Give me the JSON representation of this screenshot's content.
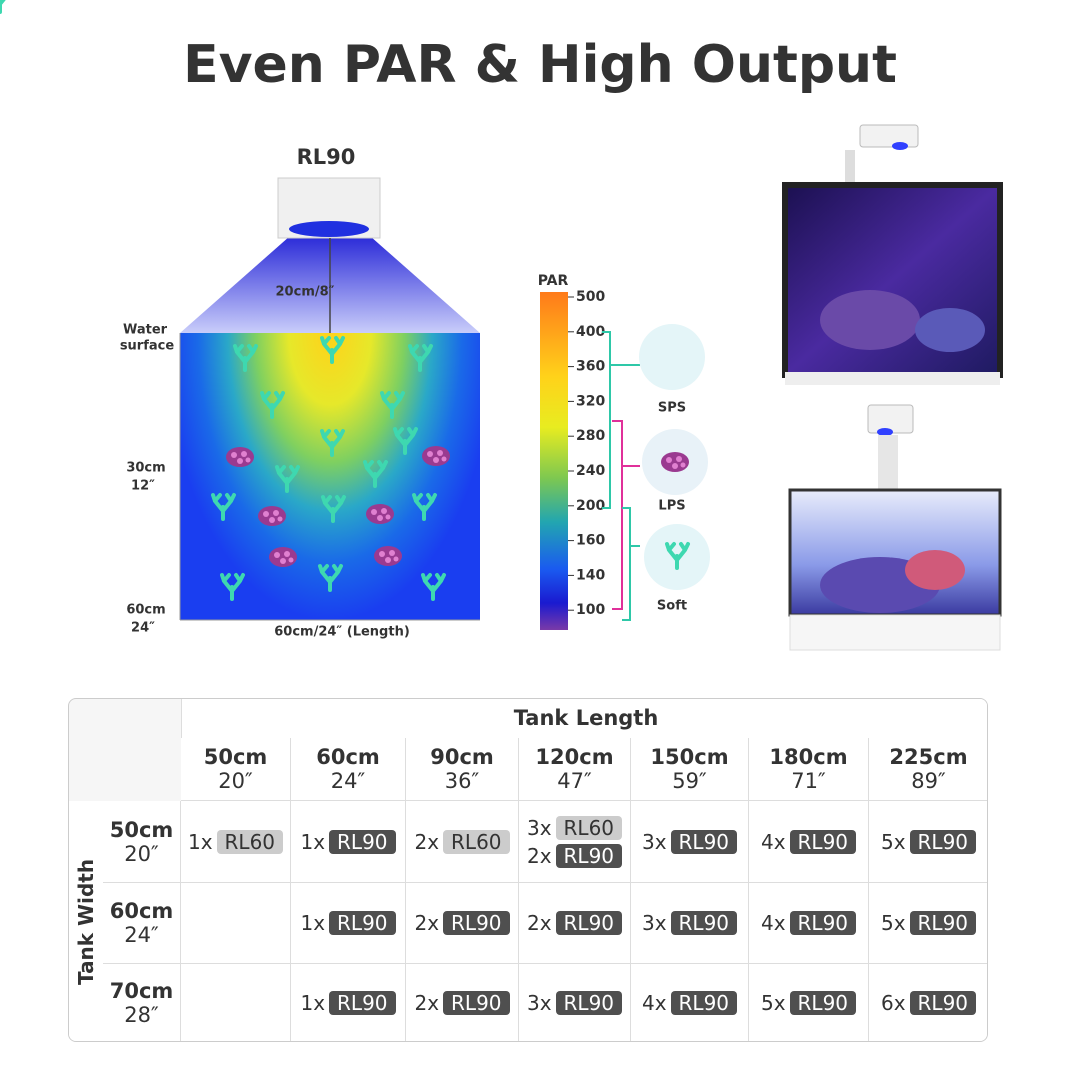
{
  "title": "Even PAR & High Output",
  "diagram": {
    "light": "RL90",
    "distance": "20cm/8″",
    "water_surface": [
      "Water",
      "surface"
    ],
    "depth_marks": [
      {
        "cm": "30cm",
        "in": "12″"
      },
      {
        "cm": "60cm",
        "in": "24″"
      }
    ],
    "length": "60cm/24″  (Length)"
  },
  "par_scale": {
    "label": "PAR",
    "ticks": [
      "500",
      "400",
      "360",
      "320",
      "280",
      "240",
      "200",
      "160",
      "140",
      "100"
    ]
  },
  "corals": [
    "SPS",
    "LPS",
    "Soft"
  ],
  "table": {
    "header": "Tank Length",
    "row_header": "Tank Width",
    "badge_colors": {
      "RL60": "#cccccc",
      "RL90": "#4f4f4f"
    },
    "columns": [
      {
        "cm": "50cm",
        "in": "20″"
      },
      {
        "cm": "60cm",
        "in": "24″"
      },
      {
        "cm": "90cm",
        "in": "36″"
      },
      {
        "cm": "120cm",
        "in": "47″"
      },
      {
        "cm": "150cm",
        "in": "59″"
      },
      {
        "cm": "180cm",
        "in": "71″"
      },
      {
        "cm": "225cm",
        "in": "89″"
      }
    ],
    "rows": [
      {
        "cm": "50cm",
        "in": "20″",
        "cells": [
          [
            {
              "count": "1x",
              "model": "RL60"
            }
          ],
          [
            {
              "count": "1x",
              "model": "RL90"
            }
          ],
          [
            {
              "count": "2x",
              "model": "RL60"
            }
          ],
          [
            {
              "count": "3x",
              "model": "RL60"
            },
            {
              "count": "2x",
              "model": "RL90"
            }
          ],
          [
            {
              "count": "3x",
              "model": "RL90"
            }
          ],
          [
            {
              "count": "4x",
              "model": "RL90"
            }
          ],
          [
            {
              "count": "5x",
              "model": "RL90"
            }
          ]
        ]
      },
      {
        "cm": "60cm",
        "in": "24″",
        "cells": [
          [],
          [
            {
              "count": "1x",
              "model": "RL90"
            }
          ],
          [
            {
              "count": "2x",
              "model": "RL90"
            }
          ],
          [
            {
              "count": "2x",
              "model": "RL90"
            }
          ],
          [
            {
              "count": "3x",
              "model": "RL90"
            }
          ],
          [
            {
              "count": "4x",
              "model": "RL90"
            }
          ],
          [
            {
              "count": "5x",
              "model": "RL90"
            }
          ]
        ]
      },
      {
        "cm": "70cm",
        "in": "28″",
        "cells": [
          [],
          [
            {
              "count": "1x",
              "model": "RL90"
            }
          ],
          [
            {
              "count": "2x",
              "model": "RL90"
            }
          ],
          [
            {
              "count": "3x",
              "model": "RL90"
            }
          ],
          [
            {
              "count": "4x",
              "model": "RL90"
            }
          ],
          [
            {
              "count": "5x",
              "model": "RL90"
            }
          ],
          [
            {
              "count": "6x",
              "model": "RL90"
            }
          ]
        ]
      }
    ]
  }
}
